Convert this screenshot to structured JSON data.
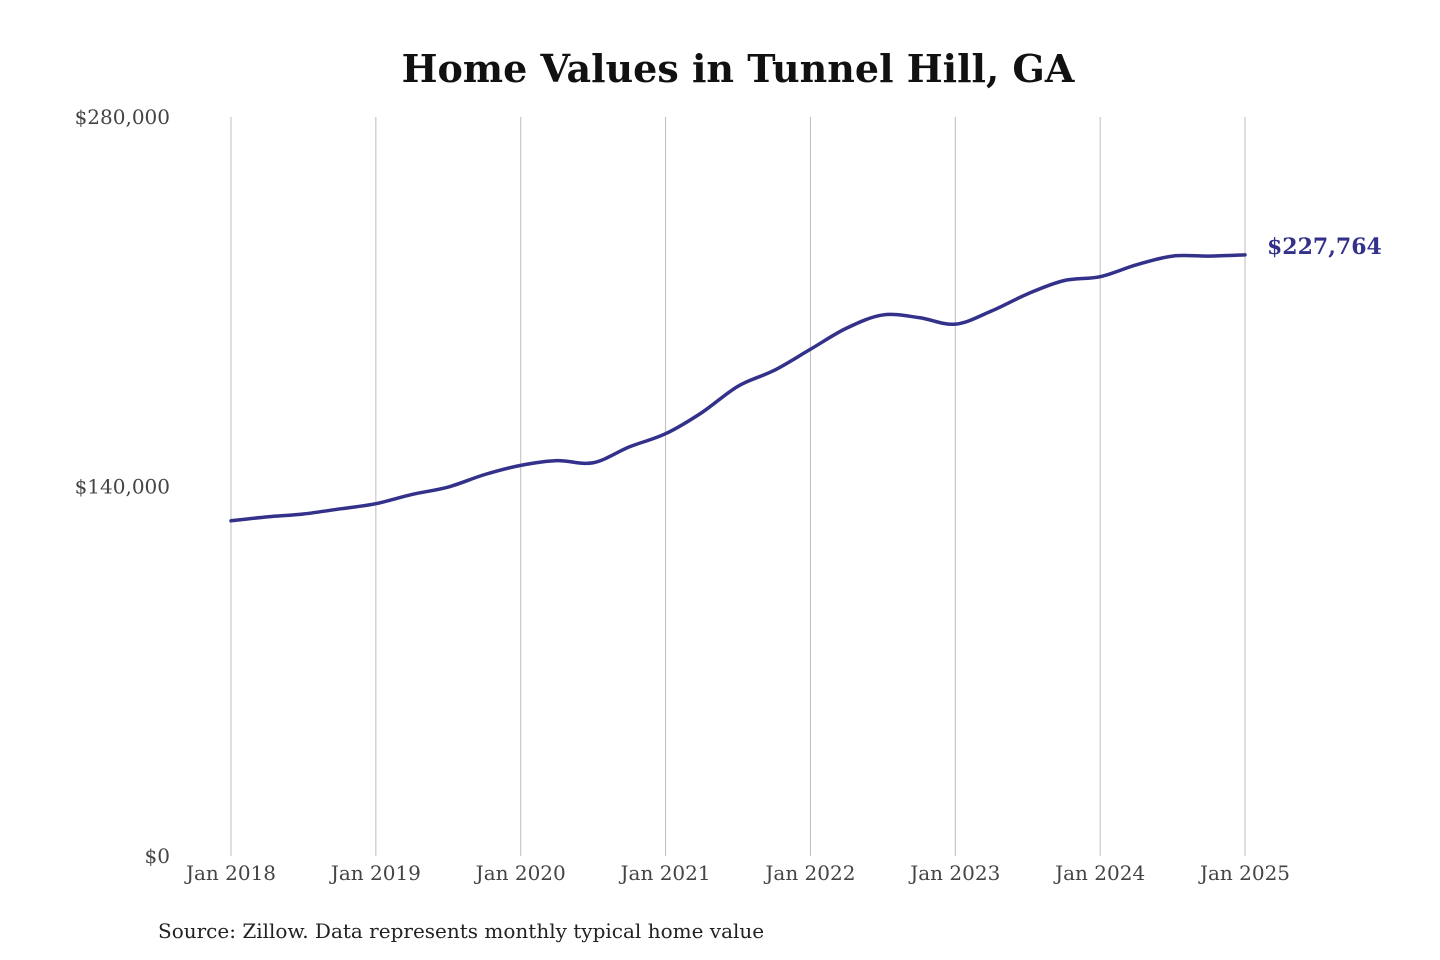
{
  "chart_data": {
    "type": "line",
    "title": "Home Values in Tunnel Hill, GA",
    "xlabel": "",
    "ylabel": "",
    "source": "Source: Zillow. Data represents monthly typical home value",
    "x_ticks": [
      "Jan 2018",
      "Jan 2019",
      "Jan 2020",
      "Jan 2021",
      "Jan 2022",
      "Jan 2023",
      "Jan 2024",
      "Jan 2025"
    ],
    "y_ticks": [
      {
        "value": 280000,
        "label": "$280,000"
      },
      {
        "value": 140000,
        "label": "$140,000"
      },
      {
        "value": 0,
        "label": "$0"
      }
    ],
    "ylim": [
      0,
      280000
    ],
    "xlim": [
      "2018-01",
      "2025-01"
    ],
    "grid": "vertical",
    "line_color": "#33318a",
    "end_label": "$227,764",
    "series": [
      {
        "values": [
          {
            "x": "2018-01",
            "y": 127000
          },
          {
            "x": "2018-04",
            "y": 128500
          },
          {
            "x": "2018-07",
            "y": 129600
          },
          {
            "x": "2018-10",
            "y": 131500
          },
          {
            "x": "2019-01",
            "y": 133500
          },
          {
            "x": "2019-04",
            "y": 137000
          },
          {
            "x": "2019-07",
            "y": 139800
          },
          {
            "x": "2019-10",
            "y": 144500
          },
          {
            "x": "2020-01",
            "y": 148000
          },
          {
            "x": "2020-04",
            "y": 149800
          },
          {
            "x": "2020-07",
            "y": 149000
          },
          {
            "x": "2020-10",
            "y": 155000
          },
          {
            "x": "2021-01",
            "y": 160000
          },
          {
            "x": "2021-04",
            "y": 168000
          },
          {
            "x": "2021-07",
            "y": 178000
          },
          {
            "x": "2021-10",
            "y": 184000
          },
          {
            "x": "2022-01",
            "y": 192000
          },
          {
            "x": "2022-04",
            "y": 200000
          },
          {
            "x": "2022-07",
            "y": 205000
          },
          {
            "x": "2022-10",
            "y": 204000
          },
          {
            "x": "2023-01",
            "y": 201500
          },
          {
            "x": "2023-04",
            "y": 206500
          },
          {
            "x": "2023-07",
            "y": 213000
          },
          {
            "x": "2023-10",
            "y": 218000
          },
          {
            "x": "2024-01",
            "y": 219500
          },
          {
            "x": "2024-04",
            "y": 224000
          },
          {
            "x": "2024-07",
            "y": 227300
          },
          {
            "x": "2024-10",
            "y": 227300
          },
          {
            "x": "2025-01",
            "y": 227764
          }
        ]
      }
    ]
  }
}
